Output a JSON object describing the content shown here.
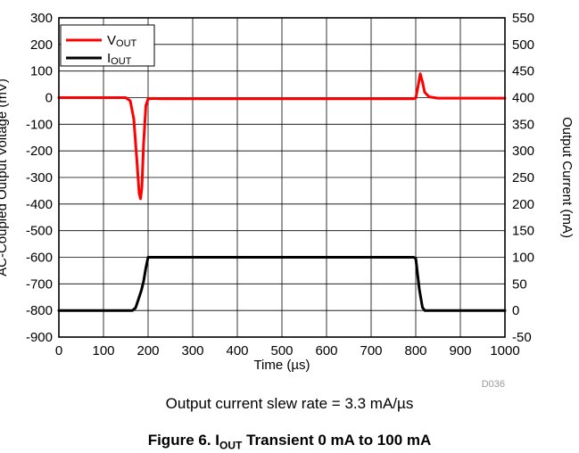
{
  "chart_data": {
    "type": "line",
    "xlabel": "Time (µs)",
    "ylabel_left": "AC-Coupled Output Voltage (mV)",
    "ylabel_right": "Output Current (mA)",
    "xlim": [
      0,
      1000
    ],
    "ylim_left": [
      -900,
      300
    ],
    "ylim_right": [
      -50,
      550
    ],
    "x_ticks": [
      0,
      100,
      200,
      300,
      400,
      500,
      600,
      700,
      800,
      900,
      1000
    ],
    "y_ticks_left": [
      300,
      200,
      100,
      0,
      -100,
      -200,
      -300,
      -400,
      -500,
      -600,
      -700,
      -800,
      -900
    ],
    "y_ticks_right": [
      550,
      500,
      450,
      400,
      350,
      300,
      250,
      200,
      150,
      100,
      50,
      0,
      -50
    ],
    "grid": true,
    "legend_position": "top-left",
    "series": [
      {
        "name": "VOUT",
        "axis": "left",
        "color": "#ff0000",
        "x": [
          0,
          150,
          160,
          168,
          175,
          180,
          183,
          186,
          190,
          195,
          200,
          210,
          230,
          300,
          500,
          700,
          795,
          800,
          806,
          810,
          815,
          820,
          830,
          850,
          900,
          1000
        ],
        "y": [
          0,
          0,
          -12,
          -80,
          -240,
          -360,
          -380,
          -340,
          -170,
          -30,
          -5,
          -3,
          -4,
          -4,
          -4,
          -4,
          -4,
          -2,
          50,
          90,
          60,
          20,
          3,
          -2,
          -2,
          -2
        ]
      },
      {
        "name": "IOUT",
        "axis": "right",
        "color": "#000000",
        "x": [
          0,
          165,
          172,
          178,
          185,
          190,
          195,
          200,
          300,
          500,
          700,
          795,
          800,
          808,
          815,
          820,
          900,
          1000
        ],
        "y": [
          0,
          0,
          5,
          20,
          38,
          55,
          80,
          100,
          100,
          100,
          100,
          100,
          98,
          40,
          6,
          0,
          0,
          0
        ]
      }
    ],
    "annotation": "D036"
  },
  "note": "Output current slew rate = 3.3 mA/µs",
  "caption": {
    "prefix": "Figure 6. I",
    "sub": "OUT",
    "suffix": " Transient 0 mA to 100 mA"
  },
  "legend": {
    "v_main": "V",
    "v_sub": "OUT",
    "i_main": "I",
    "i_sub": "OUT"
  }
}
